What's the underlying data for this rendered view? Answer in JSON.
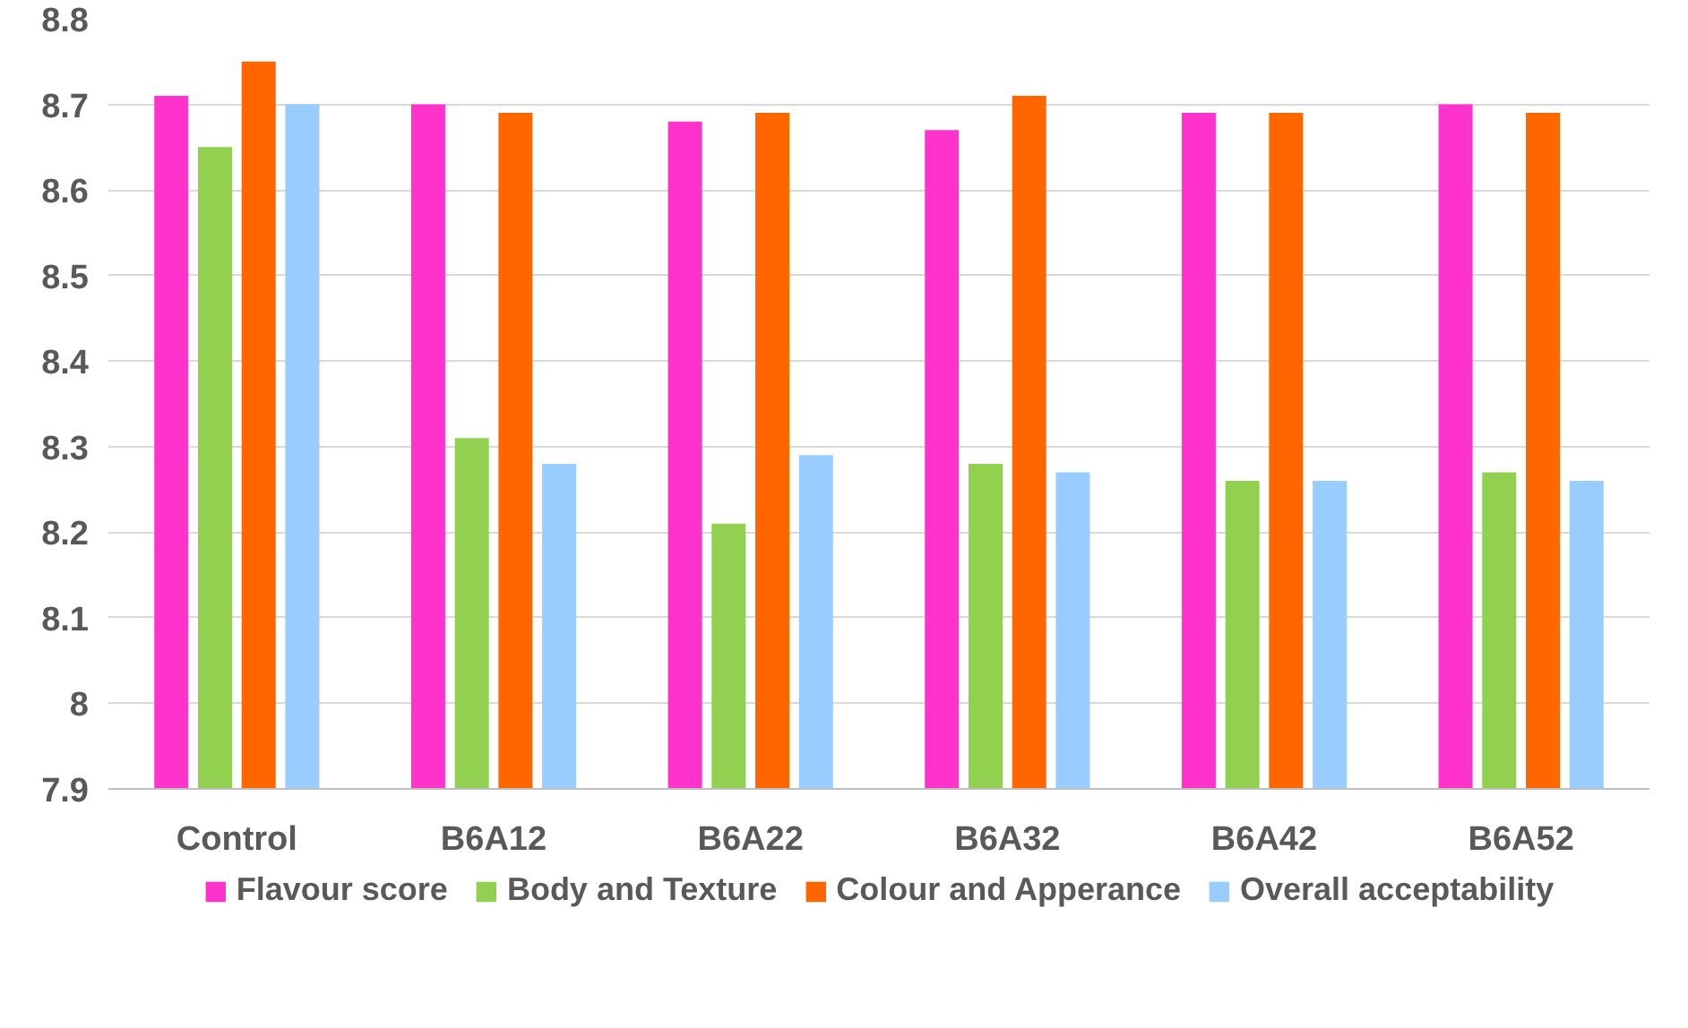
{
  "chart_data": {
    "type": "bar",
    "categories": [
      "Control",
      "B6A12",
      "B6A22",
      "B6A32",
      "B6A42",
      "B6A52"
    ],
    "series": [
      {
        "name": "Flavour score",
        "color": "#ff33cc",
        "values": [
          8.71,
          8.7,
          8.68,
          8.67,
          8.69,
          8.7
        ]
      },
      {
        "name": "Body and Texture",
        "color": "#92d050",
        "values": [
          8.65,
          8.31,
          8.21,
          8.28,
          8.26,
          8.27
        ]
      },
      {
        "name": "Colour and Apperance",
        "color": "#ff6600",
        "values": [
          8.75,
          8.69,
          8.69,
          8.71,
          8.69,
          8.69
        ]
      },
      {
        "name": "Overall acceptability",
        "color": "#99ccff",
        "values": [
          8.7,
          8.28,
          8.29,
          8.27,
          8.26,
          8.26
        ]
      }
    ],
    "ylim": [
      7.9,
      8.8
    ],
    "yticks": [
      7.9,
      8,
      8.1,
      8.2,
      8.3,
      8.4,
      8.5,
      8.6,
      8.7,
      8.8
    ],
    "grid": "y",
    "legend": "bottom"
  }
}
